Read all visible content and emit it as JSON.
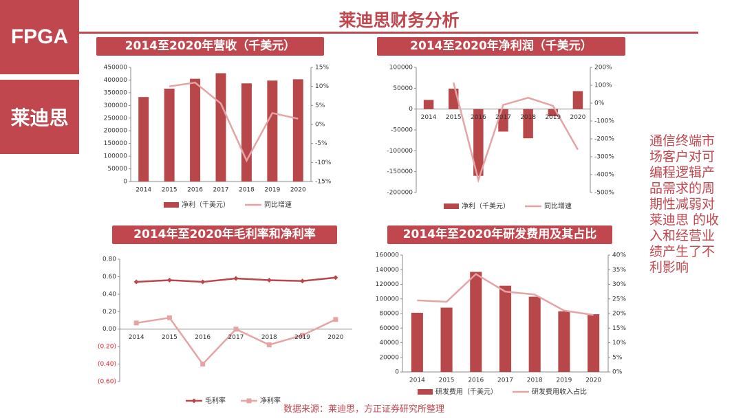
{
  "sidebar": {
    "tab1": "FPGA",
    "tab2": "莱迪思"
  },
  "page_title": "莱迪思财务分析",
  "note": "通信终端市场客户对可编程逻辑产品需求的周期性减弱对莱迪思 的收入和经营业绩产生了不利影响",
  "source": "数据来源：莱迪思，方正证券研究所整理",
  "colors": {
    "bar": "#b8474a",
    "line": "#e6a3a6",
    "accent": "#c1474f",
    "neg_tick": "#e0202a"
  },
  "chart_data": [
    {
      "id": "revenue",
      "type": "bar",
      "title": "2014至2020年营收（千美元）",
      "categories": [
        "2014",
        "2015",
        "2016",
        "2017",
        "2018",
        "2019",
        "2020"
      ],
      "series": [
        {
          "name": "净利（千美元）",
          "type": "bar",
          "axis": "left",
          "values": [
            333000,
            366000,
            405000,
            427000,
            387000,
            398000,
            403000
          ]
        },
        {
          "name": "同比增速",
          "type": "line",
          "axis": "right",
          "values": [
            null,
            10.0,
            11.0,
            5.5,
            -9.5,
            3.0,
            1.5
          ]
        }
      ],
      "y_left": {
        "min": 0,
        "max": 450000,
        "step": 50000,
        "ticks": [
          "0",
          "50000",
          "100000",
          "150000",
          "200000",
          "250000",
          "300000",
          "350000",
          "400000",
          "450000"
        ]
      },
      "y_right": {
        "min": -15,
        "max": 15,
        "step": 5,
        "ticks": [
          "-15%",
          "-10%",
          "-5%",
          "0%",
          "5%",
          "10%",
          "15%"
        ]
      },
      "legend": "bottom"
    },
    {
      "id": "net_income",
      "type": "bar",
      "title": "2014至2020年净利润（千美元）",
      "categories": [
        "2014",
        "2015",
        "2016",
        "2017",
        "2018",
        "2019",
        "2020"
      ],
      "series": [
        {
          "name": "净利（千美元）",
          "type": "bar",
          "axis": "left",
          "values": [
            22000,
            49000,
            -160000,
            -54000,
            -70000,
            -17000,
            43000
          ]
        },
        {
          "name": "同比增速",
          "type": "line",
          "axis": "right",
          "values": [
            null,
            115,
            -430,
            -10,
            30,
            -15,
            -260
          ]
        }
      ],
      "y_left": {
        "min": -200000,
        "max": 100000,
        "step": 50000,
        "ticks": [
          "-200000",
          "-150000",
          "-100000",
          "-50000",
          "0",
          "50000",
          "100000"
        ]
      },
      "y_right": {
        "min": -500,
        "max": 200,
        "step": 100,
        "ticks": [
          "-500%",
          "-400%",
          "-300%",
          "-200%",
          "-100%",
          "0%",
          "100%",
          "200%"
        ]
      },
      "legend": "bottom"
    },
    {
      "id": "margins",
      "type": "line",
      "title": "2014年至2020年毛利率和净利率",
      "categories": [
        "2014",
        "2015",
        "2016",
        "2017",
        "2018",
        "2019",
        "2020"
      ],
      "series": [
        {
          "name": "毛利率",
          "type": "line",
          "marker": "diamond",
          "color": "#b8474a",
          "values": [
            0.54,
            0.56,
            0.54,
            0.58,
            0.56,
            0.55,
            0.59
          ]
        },
        {
          "name": "净利率",
          "type": "line",
          "marker": "square",
          "color": "#e6a3a6",
          "values": [
            0.07,
            0.13,
            -0.4,
            0.0,
            -0.18,
            -0.07,
            0.11
          ]
        }
      ],
      "y_left": {
        "min": -0.6,
        "max": 0.8,
        "step": 0.2,
        "ticks": [
          "(0.60)",
          "(0.40)",
          "(0.20)",
          "0.00",
          "0.20",
          "0.40",
          "0.60",
          "0.80"
        ]
      },
      "legend": "bottom"
    },
    {
      "id": "rnd",
      "type": "bar",
      "title": "2014年至2020年研发费用及其占比",
      "categories": [
        "2014",
        "2015",
        "2016",
        "2017",
        "2018",
        "2019",
        "2020"
      ],
      "series": [
        {
          "name": "研发费用（千美元）",
          "type": "bar",
          "axis": "left",
          "values": [
            81000,
            88000,
            137000,
            118000,
            103000,
            83000,
            79000
          ]
        },
        {
          "name": "研发费用收入占比",
          "type": "line",
          "axis": "right",
          "values": [
            24.5,
            24.0,
            33.5,
            27.5,
            26.5,
            21.0,
            19.5
          ]
        }
      ],
      "y_left": {
        "min": 0,
        "max": 160000,
        "step": 20000,
        "ticks": [
          "0",
          "20000",
          "40000",
          "60000",
          "80000",
          "100000",
          "120000",
          "140000",
          "160000"
        ]
      },
      "y_right": {
        "min": 0,
        "max": 40,
        "step": 5,
        "ticks": [
          "0%",
          "5%",
          "10%",
          "15%",
          "20%",
          "25%",
          "30%",
          "35%",
          "40%"
        ]
      },
      "legend": "bottom"
    }
  ]
}
